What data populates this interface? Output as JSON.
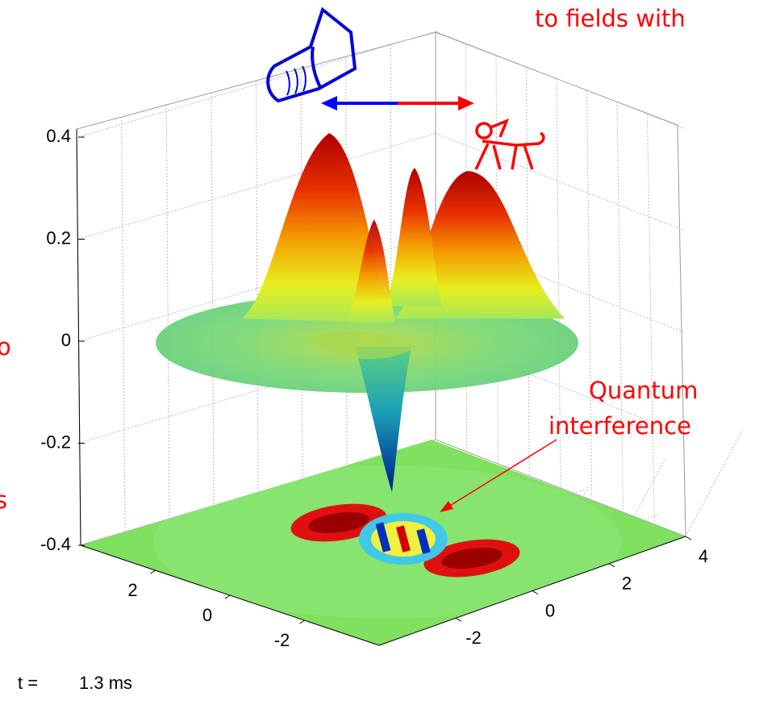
{
  "chart_data": {
    "type": "surface3d",
    "zlim": [
      -0.4,
      0.4
    ],
    "zticks": [
      0.4,
      0.2,
      0,
      -0.2,
      -0.4
    ],
    "xlim": [
      -4,
      4
    ],
    "xticks": [
      2,
      0,
      -2
    ],
    "ylim": [
      -4,
      4
    ],
    "yticks": [
      4,
      2,
      0,
      -2
    ],
    "annotations": [
      "to fields with",
      "o",
      "s",
      "Quantum",
      "interference"
    ],
    "time_label": "t =",
    "time_value": "1.3 ms"
  }
}
